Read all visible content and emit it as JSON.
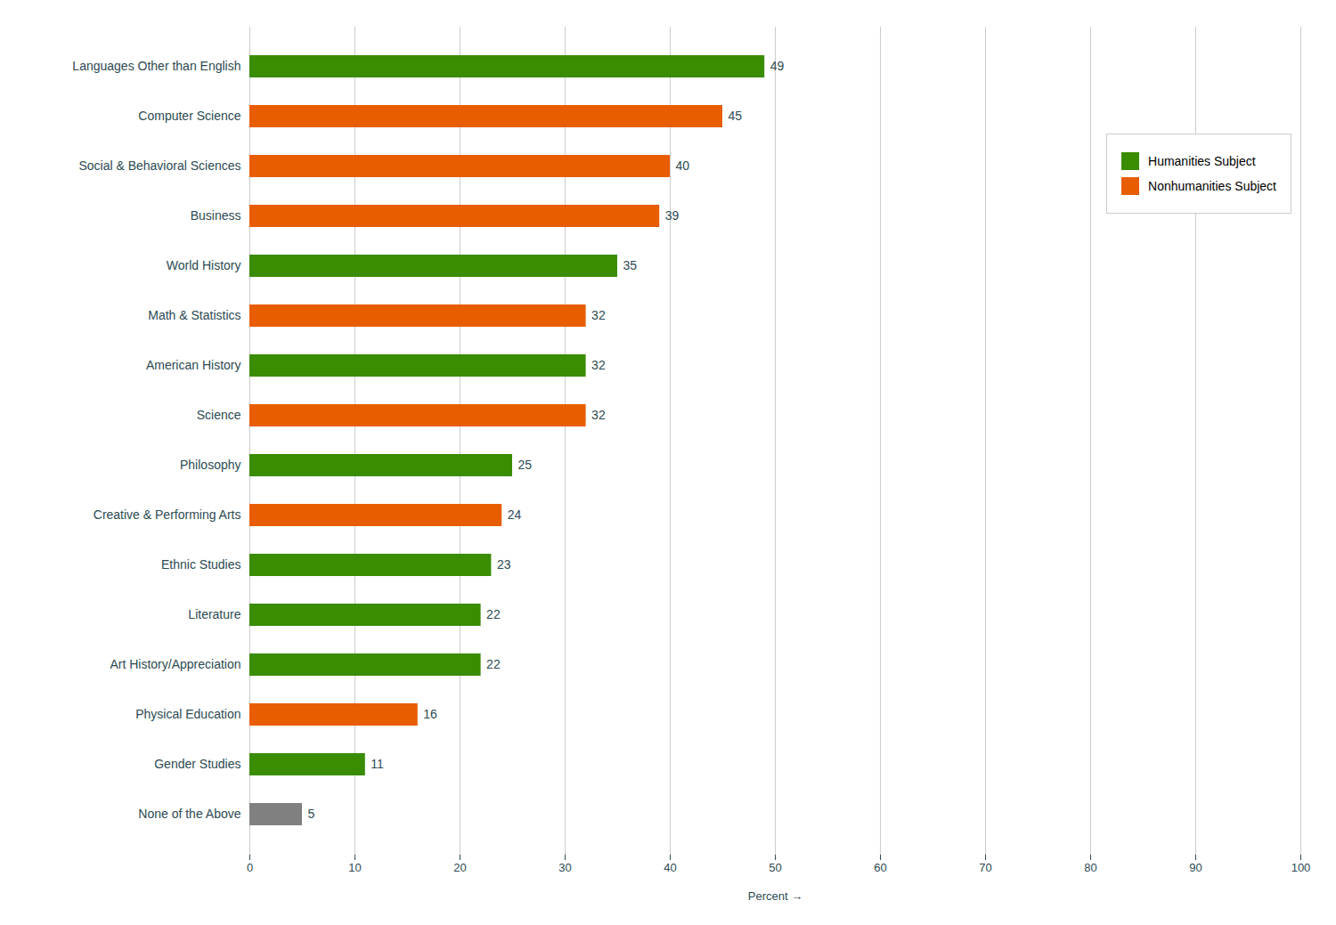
{
  "chart_data": {
    "type": "bar",
    "orientation": "horizontal",
    "categories": [
      "None of the Above",
      "Gender Studies",
      "Physical Education",
      "Art History/Appreciation",
      "Literature",
      "Ethnic Studies",
      "Creative & Performing Arts",
      "Philosophy",
      "Science",
      "American History",
      "Math & Statistics",
      "World History",
      "Business",
      "Social & Behavioral Sciences",
      "Computer Science",
      "Languages Other than English"
    ],
    "values": [
      5,
      11,
      16,
      22,
      22,
      23,
      24,
      25,
      32,
      32,
      32,
      35,
      39,
      40,
      45,
      49
    ],
    "colors": [
      "#808080",
      "#3a8c00",
      "#e85d00",
      "#3a8c00",
      "#3a8c00",
      "#3a8c00",
      "#e85d00",
      "#3a8c00",
      "#e85d00",
      "#3a8c00",
      "#e85d00",
      "#3a8c00",
      "#e85d00",
      "#e85d00",
      "#e85d00",
      "#3a8c00"
    ],
    "xlabel": "Percent",
    "xlim": [
      0,
      100
    ],
    "xticks": [
      0,
      10,
      20,
      30,
      40,
      50,
      60,
      70,
      80,
      90,
      100
    ],
    "grid": true,
    "data_labels": true,
    "legend": "upper right",
    "legend_items": [
      {
        "label": "Humanities Subject",
        "color": "#3a8c00"
      },
      {
        "label": "Nonhumanities Subject",
        "color": "#e85d00"
      }
    ]
  }
}
